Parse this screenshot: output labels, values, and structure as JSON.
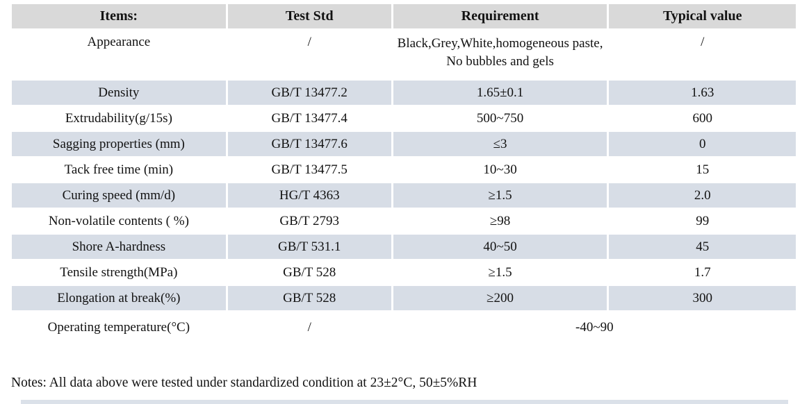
{
  "table": {
    "columns": [
      "Items:",
      "Test Std",
      "Requirement",
      "Typical value"
    ],
    "rows": [
      {
        "item": "Appearance",
        "test_std": "/",
        "requirement": "Black,Grey,White,homogeneous paste, No bubbles and gels",
        "typical_value": "/",
        "shaded": false
      },
      {
        "item": "Density",
        "test_std": "GB/T 13477.2",
        "requirement": "1.65±0.1",
        "typical_value": "1.63",
        "shaded": true
      },
      {
        "item": "Extrudability(g/15s)",
        "test_std": "GB/T 13477.4",
        "requirement": "500~750",
        "typical_value": "600",
        "shaded": false
      },
      {
        "item": "Sagging properties (mm)",
        "test_std": "GB/T 13477.6",
        "requirement": "≤3",
        "typical_value": "0",
        "shaded": true
      },
      {
        "item": "Tack free time (min)",
        "test_std": "GB/T 13477.5",
        "requirement": "10~30",
        "typical_value": "15",
        "shaded": false
      },
      {
        "item": "Curing speed (mm/d)",
        "test_std": "HG/T 4363",
        "requirement": "≥1.5",
        "typical_value": "2.0",
        "shaded": true
      },
      {
        "item": "Non-volatile contents ( %)",
        "test_std": "GB/T 2793",
        "requirement": "≥98",
        "typical_value": "99",
        "shaded": false
      },
      {
        "item": "Shore A-hardness",
        "test_std": "GB/T 531.1",
        "requirement": "40~50",
        "typical_value": "45",
        "shaded": true
      },
      {
        "item": "Tensile strength(MPa)",
        "test_std": "GB/T 528",
        "requirement": "≥1.5",
        "typical_value": "1.7",
        "shaded": false
      },
      {
        "item": "Elongation at break(%)",
        "test_std": "GB/T 528",
        "requirement": "≥200",
        "typical_value": "300",
        "shaded": true
      },
      {
        "item": "Operating temperature(°C)",
        "test_std": "/",
        "requirement": "-40~90",
        "typical_value": "",
        "shaded": false,
        "merge_last_two": true
      }
    ]
  },
  "notes": "Notes: All data above were tested under standardized condition at 23±2°C, 50±5%RH",
  "colors": {
    "header_bg": "#d9d9d9",
    "row_shaded_bg": "#d7dde6",
    "text": "#121212",
    "partial_row_bg": "#dbe1e9"
  }
}
